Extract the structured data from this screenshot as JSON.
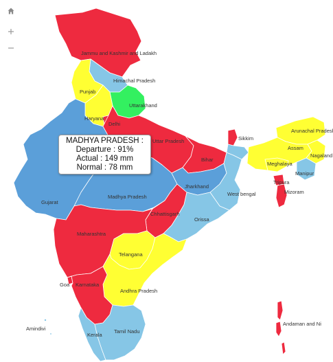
{
  "colors": {
    "excess": "#ee2a3f",
    "normal": "#5b9fd9",
    "normal_light": "#86c6e6",
    "deficient": "#ffff33",
    "large_excess": "#33f060",
    "boundary": "#ffffff"
  },
  "controls": {
    "home_icon": "home-icon",
    "zoom_in_icon": "plus-icon",
    "zoom_out_icon": "minus-icon"
  },
  "tooltip": {
    "state": "MADHYA PRADESH :",
    "departure": "Departure : 91%",
    "actual": "Actual : 149 mm",
    "normal": "Normal : 78 mm"
  },
  "regions": [
    {
      "name": "Jammu and Kashmir and Ladakh",
      "category": "excess"
    },
    {
      "name": "Himachal Pradesh",
      "category": "normal_light"
    },
    {
      "name": "Punjab",
      "category": "deficient"
    },
    {
      "name": "Uttarakhand",
      "category": "large_excess"
    },
    {
      "name": "Haryana",
      "category": "deficient"
    },
    {
      "name": "Delhi",
      "category": "excess"
    },
    {
      "name": "Uttar Pradesh",
      "category": "excess"
    },
    {
      "name": "Bihar",
      "category": "excess"
    },
    {
      "name": "Sikkim",
      "category": "excess"
    },
    {
      "name": "Arunachal Pradesh",
      "category": "deficient"
    },
    {
      "name": "Assam",
      "category": "deficient"
    },
    {
      "name": "Nagaland",
      "category": "deficient"
    },
    {
      "name": "Meghalaya",
      "category": "deficient"
    },
    {
      "name": "Manipur",
      "category": "normal_light"
    },
    {
      "name": "Tripura",
      "category": "excess"
    },
    {
      "name": "Mizoram",
      "category": "excess"
    },
    {
      "name": "Jharkhand",
      "category": "normal"
    },
    {
      "name": "West bengal",
      "category": "normal_light"
    },
    {
      "name": "Gujarat",
      "category": "normal"
    },
    {
      "name": "Madhya Pradesh",
      "category": "normal"
    },
    {
      "name": "Chhattisgarh",
      "category": "excess"
    },
    {
      "name": "Orissa",
      "category": "normal_light"
    },
    {
      "name": "Maharashtra",
      "category": "excess"
    },
    {
      "name": "Telangana",
      "category": "deficient"
    },
    {
      "name": "Goa",
      "category": "excess"
    },
    {
      "name": "Karnataka",
      "category": "excess"
    },
    {
      "name": "Andhra Pradesh",
      "category": "deficient"
    },
    {
      "name": "Kerala",
      "category": "normal_light"
    },
    {
      "name": "Tamil Nadu",
      "category": "normal_light"
    },
    {
      "name": "Amindivi",
      "category": "normal_light"
    },
    {
      "name": "Andaman and Ni",
      "category": "excess"
    }
  ]
}
